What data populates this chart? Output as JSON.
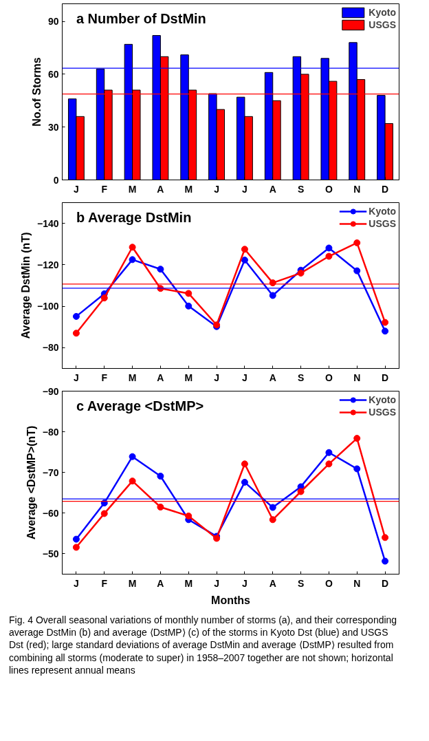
{
  "chart_data": [
    {
      "type": "bar",
      "title": "a Number of DstMin",
      "ylabel": "No.of Storms",
      "categories": [
        "J",
        "F",
        "M",
        "A",
        "M",
        "J",
        "J",
        "A",
        "S",
        "O",
        "N",
        "D"
      ],
      "series": [
        {
          "name": "Kyoto",
          "color": "#0000ff",
          "values": [
            46,
            63,
            77,
            82,
            71,
            49,
            47,
            61,
            70,
            69,
            78,
            48
          ]
        },
        {
          "name": "USGS",
          "color": "#ff0000",
          "values": [
            36,
            51,
            51,
            70,
            51,
            40,
            36,
            45,
            60,
            56,
            57,
            32
          ]
        }
      ],
      "ylim": [
        0,
        100
      ],
      "yticks": [
        0,
        30,
        60,
        90
      ],
      "grid": false,
      "legend": "top right",
      "ref_lines": [
        {
          "axis": "y",
          "value": 63.4,
          "color": "#0000ff"
        },
        {
          "axis": "y",
          "value": 48.8,
          "color": "#ff0000"
        }
      ]
    },
    {
      "type": "line",
      "title": "b Average DstMin",
      "ylabel": "Average DstMin (nT)",
      "categories": [
        "J",
        "F",
        "M",
        "A",
        "M",
        "J",
        "J",
        "A",
        "S",
        "O",
        "N",
        "D"
      ],
      "series": [
        {
          "name": "Kyoto",
          "color": "#0000ff",
          "values": [
            -95.1,
            -106,
            -122.5,
            -117.9,
            -100.1,
            -90.2,
            -122.3,
            -105.2,
            -117.4,
            -128.1,
            -117.1,
            -88
          ]
        },
        {
          "name": "USGS",
          "color": "#ff0000",
          "values": [
            -87,
            -104,
            -128.5,
            -108.6,
            -106.2,
            -91,
            -127.5,
            -111.3,
            -116,
            -124.1,
            -130.6,
            -92.2
          ]
        }
      ],
      "ylim": [
        -70,
        -150
      ],
      "yticks": [
        {
          "value": -80,
          "label": "−80"
        },
        {
          "value": -100,
          "label": "−100"
        },
        {
          "value": -120,
          "label": "−120"
        },
        {
          "value": -140,
          "label": "−140"
        }
      ],
      "grid": false,
      "legend": "top right",
      "marker": "circle",
      "line_style": "solid",
      "ref_lines": [
        {
          "axis": "y",
          "value": -110.7,
          "color": "#ff0000"
        },
        {
          "axis": "y",
          "value": -108.7,
          "color": "#0000ff"
        }
      ]
    },
    {
      "type": "line",
      "title": "c Average <DstMP>",
      "ylabel": "Average <DstMP>(nT)",
      "xlabel": "Months",
      "categories": [
        "J",
        "F",
        "M",
        "A",
        "M",
        "J",
        "J",
        "A",
        "S",
        "O",
        "N",
        "D"
      ],
      "series": [
        {
          "name": "Kyoto",
          "color": "#0000ff",
          "values": [
            -53.6,
            -62.5,
            -73.9,
            -69.1,
            -58.4,
            -54.3,
            -67.6,
            -61.4,
            -66.5,
            -74.9,
            -70.9,
            -48.2
          ]
        },
        {
          "name": "USGS",
          "color": "#ff0000",
          "values": [
            -51.6,
            -59.9,
            -67.9,
            -61.5,
            -59.3,
            -53.8,
            -72.1,
            -58.4,
            -65.3,
            -72.1,
            -78.4,
            -54
          ]
        }
      ],
      "ylim": [
        -45,
        -90
      ],
      "yticks": [
        {
          "value": -50,
          "label": "−50"
        },
        {
          "value": -60,
          "label": "−60"
        },
        {
          "value": -70,
          "label": "−70"
        },
        {
          "value": -80,
          "label": "−80"
        },
        {
          "value": -90,
          "label": "−90"
        }
      ],
      "grid": false,
      "legend": "top right",
      "marker": "circle",
      "line_style": "solid",
      "ref_lines": [
        {
          "axis": "y",
          "value": -63.5,
          "color": "#0000ff"
        },
        {
          "axis": "y",
          "value": -62.9,
          "color": "#ff0000"
        }
      ],
      "annotations": [
        "Fig. 4  Overall seasonal variations of monthly number of storms (a), and their corresponding average DstMin (b) and average ⟨DstMP⟩ (c) of the storms in Kyoto Dst (blue) and USGS Dst (red); large standard deviations of average DstMin and average ⟨DstMP⟩ resulted from combining all storms (moderate to super) in 1958–2007 together are not shown; horizontal lines represent annual means"
      ]
    }
  ]
}
